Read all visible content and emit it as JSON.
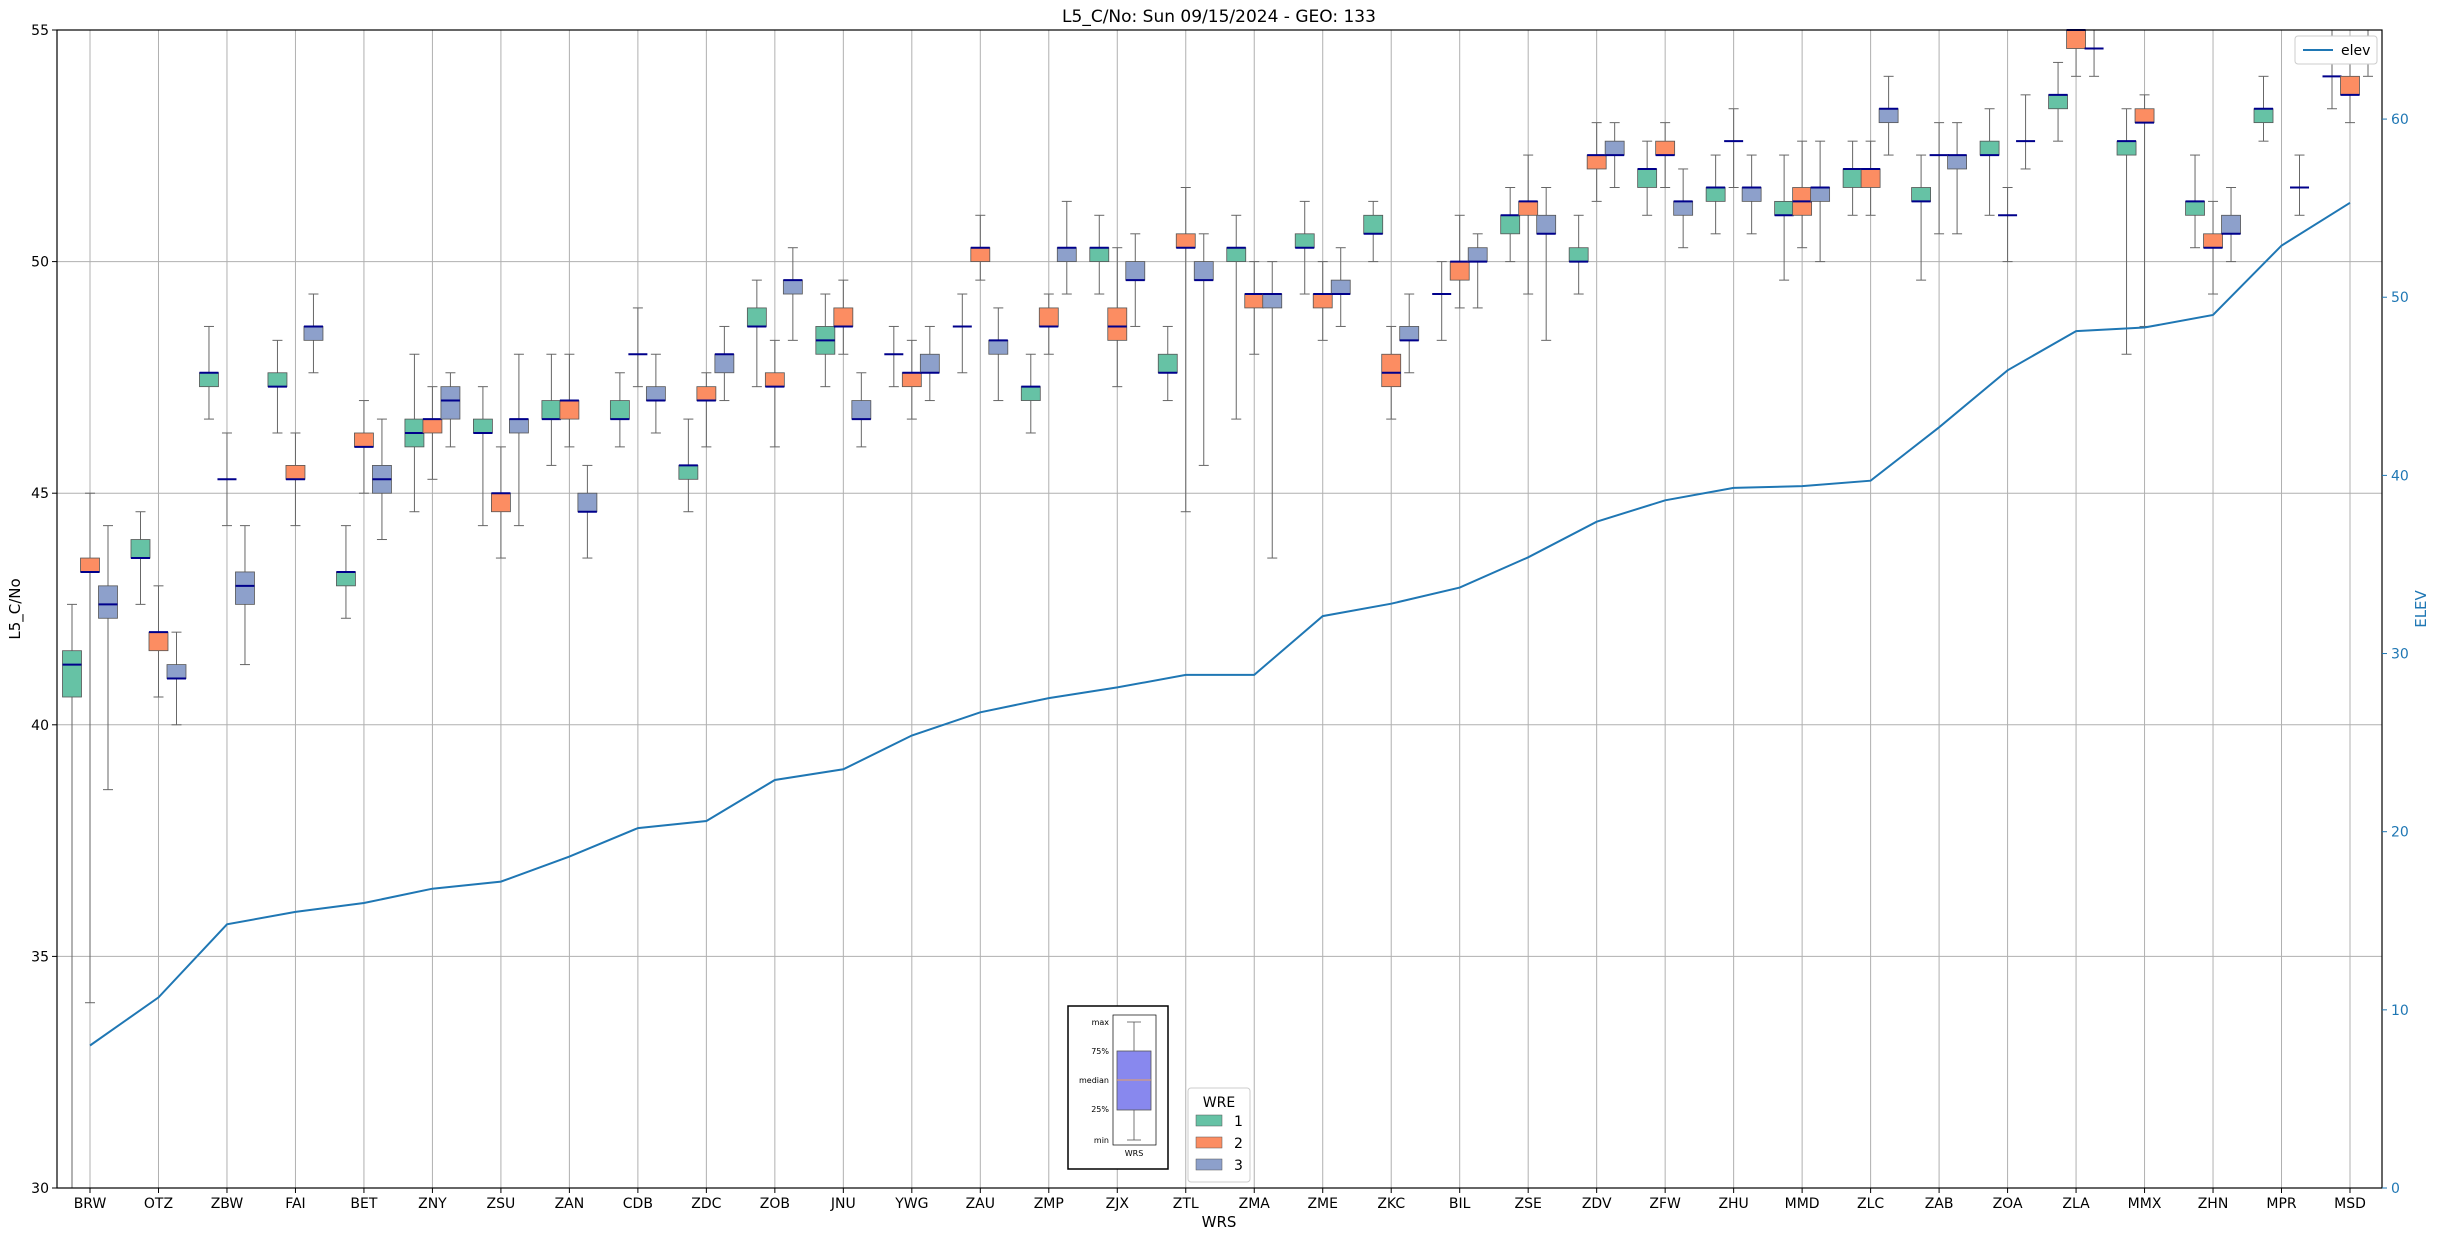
{
  "chart_data": {
    "type": "box",
    "title": "L5_C/No: Sun 09/15/2024 - GEO: 133",
    "xlabel": "WRS",
    "ylabel": "L5_C/No",
    "ylabel_right": "ELEV",
    "ylim": [
      30,
      55
    ],
    "ylim_right": [
      0,
      65
    ],
    "yticks": [
      30,
      35,
      40,
      45,
      50,
      55
    ],
    "yticks_right": [
      0,
      10,
      20,
      30,
      40,
      50,
      60
    ],
    "grid": true,
    "categories": [
      "BRW",
      "OTZ",
      "ZBW",
      "FAI",
      "BET",
      "ZNY",
      "ZSU",
      "ZAN",
      "CDB",
      "ZDC",
      "ZOB",
      "JNU",
      "YWG",
      "ZAU",
      "ZMP",
      "ZJX",
      "ZTL",
      "ZMA",
      "ZME",
      "ZKC",
      "BIL",
      "ZSE",
      "ZDV",
      "ZFW",
      "ZHU",
      "MMD",
      "ZLC",
      "ZAB",
      "ZOA",
      "ZLA",
      "MMX",
      "ZHN",
      "MPR",
      "MSD"
    ],
    "wre_colors": {
      "1": "#66c2a5",
      "2": "#fc8d62",
      "3": "#8da0cb"
    },
    "wre_legend": {
      "title": "WRE",
      "entries": [
        "1",
        "2",
        "3"
      ]
    },
    "elev_legend": "elev",
    "elev_color": "#1f77b4",
    "elev": [
      8,
      10.7,
      14.8,
      15.5,
      16,
      16.8,
      17.2,
      18.6,
      20.2,
      20.6,
      22.9,
      23.5,
      25.4,
      26.7,
      27.5,
      28.1,
      28.8,
      28.8,
      32.1,
      32.8,
      33.7,
      35.4,
      37.4,
      38.6,
      39.3,
      39.4,
      39.7,
      42.7,
      45.9,
      48.1,
      48.3,
      49.0,
      52.9,
      55.3
    ],
    "boxes": [
      {
        "wrs": "BRW",
        "wre": 1,
        "min": 30,
        "q1": 40.6,
        "median": 41.3,
        "q3": 41.6,
        "max": 42.6
      },
      {
        "wrs": "BRW",
        "wre": 2,
        "min": 34,
        "q1": 43.3,
        "median": 43.3,
        "q3": 43.6,
        "max": 45
      },
      {
        "wrs": "BRW",
        "wre": 3,
        "min": 38.6,
        "q1": 42.3,
        "median": 42.6,
        "q3": 43,
        "max": 44.3
      },
      {
        "wrs": "OTZ",
        "wre": 1,
        "min": 42.6,
        "q1": 43.6,
        "median": 43.6,
        "q3": 44,
        "max": 44.6
      },
      {
        "wrs": "OTZ",
        "wre": 2,
        "min": 40.6,
        "q1": 41.6,
        "median": 42,
        "q3": 42,
        "max": 43
      },
      {
        "wrs": "OTZ",
        "wre": 3,
        "min": 40,
        "q1": 41,
        "median": 41,
        "q3": 41.3,
        "max": 42
      },
      {
        "wrs": "ZBW",
        "wre": 1,
        "min": 46.6,
        "q1": 47.3,
        "median": 47.6,
        "q3": 47.6,
        "max": 48.6
      },
      {
        "wrs": "ZBW",
        "wre": 2,
        "min": 44.3,
        "q1": 45.3,
        "median": 45.3,
        "q3": 45.3,
        "max": 46.3
      },
      {
        "wrs": "ZBW",
        "wre": 3,
        "min": 41.3,
        "q1": 42.6,
        "median": 43,
        "q3": 43.3,
        "max": 44.3
      },
      {
        "wrs": "FAI",
        "wre": 1,
        "min": 46.3,
        "q1": 47.3,
        "median": 47.3,
        "q3": 47.6,
        "max": 48.3
      },
      {
        "wrs": "FAI",
        "wre": 2,
        "min": 44.3,
        "q1": 45.3,
        "median": 45.3,
        "q3": 45.6,
        "max": 46.3
      },
      {
        "wrs": "FAI",
        "wre": 3,
        "min": 47.6,
        "q1": 48.3,
        "median": 48.6,
        "q3": 48.6,
        "max": 49.3
      },
      {
        "wrs": "BET",
        "wre": 1,
        "min": 42.3,
        "q1": 43,
        "median": 43.3,
        "q3": 43.3,
        "max": 44.3
      },
      {
        "wrs": "BET",
        "wre": 2,
        "min": 45,
        "q1": 46,
        "median": 46,
        "q3": 46.3,
        "max": 47
      },
      {
        "wrs": "BET",
        "wre": 3,
        "min": 44,
        "q1": 45,
        "median": 45.3,
        "q3": 45.6,
        "max": 46.6
      },
      {
        "wrs": "ZNY",
        "wre": 1,
        "min": 44.6,
        "q1": 46,
        "median": 46.3,
        "q3": 46.6,
        "max": 48
      },
      {
        "wrs": "ZNY",
        "wre": 2,
        "min": 45.3,
        "q1": 46.3,
        "median": 46.6,
        "q3": 46.6,
        "max": 47.3
      },
      {
        "wrs": "ZNY",
        "wre": 3,
        "min": 46,
        "q1": 46.6,
        "median": 47,
        "q3": 47.3,
        "max": 47.6
      },
      {
        "wrs": "ZSU",
        "wre": 1,
        "min": 44.3,
        "q1": 46.3,
        "median": 46.3,
        "q3": 46.6,
        "max": 47.3
      },
      {
        "wrs": "ZSU",
        "wre": 2,
        "min": 43.6,
        "q1": 44.6,
        "median": 45,
        "q3": 45,
        "max": 46
      },
      {
        "wrs": "ZSU",
        "wre": 3,
        "min": 44.3,
        "q1": 46.3,
        "median": 46.6,
        "q3": 46.6,
        "max": 48
      },
      {
        "wrs": "ZAN",
        "wre": 1,
        "min": 45.6,
        "q1": 46.6,
        "median": 46.6,
        "q3": 47,
        "max": 48
      },
      {
        "wrs": "ZAN",
        "wre": 2,
        "min": 46,
        "q1": 46.6,
        "median": 47,
        "q3": 47,
        "max": 48
      },
      {
        "wrs": "ZAN",
        "wre": 3,
        "min": 43.6,
        "q1": 44.6,
        "median": 44.6,
        "q3": 45,
        "max": 45.6
      },
      {
        "wrs": "CDB",
        "wre": 1,
        "min": 46,
        "q1": 46.6,
        "median": 46.6,
        "q3": 47,
        "max": 47.6
      },
      {
        "wrs": "CDB",
        "wre": 2,
        "min": 47.3,
        "q1": 48,
        "median": 48,
        "q3": 48,
        "max": 49
      },
      {
        "wrs": "CDB",
        "wre": 3,
        "min": 46.3,
        "q1": 47,
        "median": 47,
        "q3": 47.3,
        "max": 48
      },
      {
        "wrs": "ZDC",
        "wre": 1,
        "min": 44.6,
        "q1": 45.3,
        "median": 45.6,
        "q3": 45.6,
        "max": 46.6
      },
      {
        "wrs": "ZDC",
        "wre": 2,
        "min": 46,
        "q1": 47,
        "median": 47,
        "q3": 47.3,
        "max": 47.6
      },
      {
        "wrs": "ZDC",
        "wre": 3,
        "min": 47,
        "q1": 47.6,
        "median": 48,
        "q3": 48,
        "max": 48.6
      },
      {
        "wrs": "ZOB",
        "wre": 1,
        "min": 47.3,
        "q1": 48.6,
        "median": 48.6,
        "q3": 49,
        "max": 49.6
      },
      {
        "wrs": "ZOB",
        "wre": 2,
        "min": 46,
        "q1": 47.3,
        "median": 47.3,
        "q3": 47.6,
        "max": 48.3
      },
      {
        "wrs": "ZOB",
        "wre": 3,
        "min": 48.3,
        "q1": 49.3,
        "median": 49.6,
        "q3": 49.6,
        "max": 50.3
      },
      {
        "wrs": "JNU",
        "wre": 1,
        "min": 47.3,
        "q1": 48,
        "median": 48.3,
        "q3": 48.6,
        "max": 49.3
      },
      {
        "wrs": "JNU",
        "wre": 2,
        "min": 48,
        "q1": 48.6,
        "median": 48.6,
        "q3": 49,
        "max": 49.6
      },
      {
        "wrs": "JNU",
        "wre": 3,
        "min": 46,
        "q1": 46.6,
        "median": 46.6,
        "q3": 47,
        "max": 47.6
      },
      {
        "wrs": "YWG",
        "wre": 1,
        "min": 47.3,
        "q1": 48,
        "median": 48,
        "q3": 48,
        "max": 48.6
      },
      {
        "wrs": "YWG",
        "wre": 2,
        "min": 46.6,
        "q1": 47.3,
        "median": 47.6,
        "q3": 47.6,
        "max": 48.3
      },
      {
        "wrs": "YWG",
        "wre": 3,
        "min": 47,
        "q1": 47.6,
        "median": 47.6,
        "q3": 48,
        "max": 48.6
      },
      {
        "wrs": "ZAU",
        "wre": 1,
        "min": 47.6,
        "q1": 48.6,
        "median": 48.6,
        "q3": 48.6,
        "max": 49.3
      },
      {
        "wrs": "ZAU",
        "wre": 2,
        "min": 49.6,
        "q1": 50,
        "median": 50.3,
        "q3": 50.3,
        "max": 51
      },
      {
        "wrs": "ZAU",
        "wre": 3,
        "min": 47,
        "q1": 48,
        "median": 48.3,
        "q3": 48.3,
        "max": 49
      },
      {
        "wrs": "ZMP",
        "wre": 1,
        "min": 46.3,
        "q1": 47,
        "median": 47.3,
        "q3": 47.3,
        "max": 48
      },
      {
        "wrs": "ZMP",
        "wre": 2,
        "min": 48,
        "q1": 48.6,
        "median": 48.6,
        "q3": 49,
        "max": 49.3
      },
      {
        "wrs": "ZMP",
        "wre": 3,
        "min": 49.3,
        "q1": 50,
        "median": 50.3,
        "q3": 50.3,
        "max": 51.3
      },
      {
        "wrs": "ZJX",
        "wre": 1,
        "min": 49.3,
        "q1": 50,
        "median": 50.3,
        "q3": 50.3,
        "max": 51
      },
      {
        "wrs": "ZJX",
        "wre": 2,
        "min": 47.3,
        "q1": 48.3,
        "median": 48.6,
        "q3": 49,
        "max": 50.3
      },
      {
        "wrs": "ZJX",
        "wre": 3,
        "min": 48.6,
        "q1": 49.6,
        "median": 49.6,
        "q3": 50,
        "max": 50.6
      },
      {
        "wrs": "ZTL",
        "wre": 1,
        "min": 47,
        "q1": 47.6,
        "median": 47.6,
        "q3": 48,
        "max": 48.6
      },
      {
        "wrs": "ZTL",
        "wre": 2,
        "min": 44.6,
        "q1": 50.3,
        "median": 50.3,
        "q3": 50.6,
        "max": 51.6
      },
      {
        "wrs": "ZTL",
        "wre": 3,
        "min": 45.6,
        "q1": 49.6,
        "median": 49.6,
        "q3": 50,
        "max": 50.6
      },
      {
        "wrs": "ZMA",
        "wre": 1,
        "min": 46.6,
        "q1": 50,
        "median": 50.3,
        "q3": 50.3,
        "max": 51
      },
      {
        "wrs": "ZMA",
        "wre": 2,
        "min": 48,
        "q1": 49,
        "median": 49.3,
        "q3": 49.3,
        "max": 50
      },
      {
        "wrs": "ZMA",
        "wre": 3,
        "min": 43.6,
        "q1": 49,
        "median": 49.3,
        "q3": 49.3,
        "max": 50
      },
      {
        "wrs": "ZME",
        "wre": 1,
        "min": 49.3,
        "q1": 50.3,
        "median": 50.3,
        "q3": 50.6,
        "max": 51.3
      },
      {
        "wrs": "ZME",
        "wre": 2,
        "min": 48.3,
        "q1": 49,
        "median": 49.3,
        "q3": 49.3,
        "max": 50
      },
      {
        "wrs": "ZME",
        "wre": 3,
        "min": 48.6,
        "q1": 49.3,
        "median": 49.3,
        "q3": 49.6,
        "max": 50.3
      },
      {
        "wrs": "ZKC",
        "wre": 1,
        "min": 50,
        "q1": 50.6,
        "median": 50.6,
        "q3": 51,
        "max": 51.3
      },
      {
        "wrs": "ZKC",
        "wre": 2,
        "min": 46.6,
        "q1": 47.3,
        "median": 47.6,
        "q3": 48,
        "max": 48.6
      },
      {
        "wrs": "ZKC",
        "wre": 3,
        "min": 47.6,
        "q1": 48.3,
        "median": 48.3,
        "q3": 48.6,
        "max": 49.3
      },
      {
        "wrs": "BIL",
        "wre": 1,
        "min": 48.3,
        "q1": 49.3,
        "median": 49.3,
        "q3": 49.3,
        "max": 50
      },
      {
        "wrs": "BIL",
        "wre": 2,
        "min": 49,
        "q1": 49.6,
        "median": 50,
        "q3": 50,
        "max": 51
      },
      {
        "wrs": "BIL",
        "wre": 3,
        "min": 49,
        "q1": 50,
        "median": 50,
        "q3": 50.3,
        "max": 50.6
      },
      {
        "wrs": "ZSE",
        "wre": 1,
        "min": 50,
        "q1": 50.6,
        "median": 51,
        "q3": 51,
        "max": 51.6
      },
      {
        "wrs": "ZSE",
        "wre": 2,
        "min": 49.3,
        "q1": 51,
        "median": 51.3,
        "q3": 51.3,
        "max": 52.3
      },
      {
        "wrs": "ZSE",
        "wre": 3,
        "min": 48.3,
        "q1": 50.6,
        "median": 50.6,
        "q3": 51,
        "max": 51.6
      },
      {
        "wrs": "ZDV",
        "wre": 1,
        "min": 49.3,
        "q1": 50,
        "median": 50,
        "q3": 50.3,
        "max": 51
      },
      {
        "wrs": "ZDV",
        "wre": 2,
        "min": 51.3,
        "q1": 52,
        "median": 52.3,
        "q3": 52.3,
        "max": 53
      },
      {
        "wrs": "ZDV",
        "wre": 3,
        "min": 51.6,
        "q1": 52.3,
        "median": 52.3,
        "q3": 52.6,
        "max": 53
      },
      {
        "wrs": "ZFW",
        "wre": 1,
        "min": 51,
        "q1": 51.6,
        "median": 52,
        "q3": 52,
        "max": 52.6
      },
      {
        "wrs": "ZFW",
        "wre": 2,
        "min": 51.6,
        "q1": 52.3,
        "median": 52.3,
        "q3": 52.6,
        "max": 53
      },
      {
        "wrs": "ZFW",
        "wre": 3,
        "min": 50.3,
        "q1": 51,
        "median": 51.3,
        "q3": 51.3,
        "max": 52
      },
      {
        "wrs": "ZHU",
        "wre": 1,
        "min": 50.6,
        "q1": 51.3,
        "median": 51.6,
        "q3": 51.6,
        "max": 52.3
      },
      {
        "wrs": "ZHU",
        "wre": 2,
        "min": 51.6,
        "q1": 52.6,
        "median": 52.6,
        "q3": 52.6,
        "max": 53.3
      },
      {
        "wrs": "ZHU",
        "wre": 3,
        "min": 50.6,
        "q1": 51.3,
        "median": 51.6,
        "q3": 51.6,
        "max": 52.3
      },
      {
        "wrs": "MMD",
        "wre": 1,
        "min": 49.6,
        "q1": 51,
        "median": 51,
        "q3": 51.3,
        "max": 52.3
      },
      {
        "wrs": "MMD",
        "wre": 2,
        "min": 50.3,
        "q1": 51,
        "median": 51.3,
        "q3": 51.6,
        "max": 52.6
      },
      {
        "wrs": "MMD",
        "wre": 3,
        "min": 50,
        "q1": 51.3,
        "median": 51.6,
        "q3": 51.6,
        "max": 52.6
      },
      {
        "wrs": "ZLC",
        "wre": 1,
        "min": 51,
        "q1": 51.6,
        "median": 52,
        "q3": 52,
        "max": 52.6
      },
      {
        "wrs": "ZLC",
        "wre": 2,
        "min": 51,
        "q1": 51.6,
        "median": 52,
        "q3": 52,
        "max": 52.6
      },
      {
        "wrs": "ZLC",
        "wre": 3,
        "min": 52.3,
        "q1": 53,
        "median": 53.3,
        "q3": 53.3,
        "max": 54
      },
      {
        "wrs": "ZAB",
        "wre": 1,
        "min": 49.6,
        "q1": 51.3,
        "median": 51.3,
        "q3": 51.6,
        "max": 52.3
      },
      {
        "wrs": "ZAB",
        "wre": 2,
        "min": 50.6,
        "q1": 52.3,
        "median": 52.3,
        "q3": 52.3,
        "max": 53
      },
      {
        "wrs": "ZAB",
        "wre": 3,
        "min": 50.6,
        "q1": 52,
        "median": 52.3,
        "q3": 52.3,
        "max": 53
      },
      {
        "wrs": "ZOA",
        "wre": 1,
        "min": 51,
        "q1": 52.3,
        "median": 52.3,
        "q3": 52.6,
        "max": 53.3
      },
      {
        "wrs": "ZOA",
        "wre": 2,
        "min": 50,
        "q1": 51,
        "median": 51,
        "q3": 51,
        "max": 51.6
      },
      {
        "wrs": "ZOA",
        "wre": 3,
        "min": 52,
        "q1": 52.6,
        "median": 52.6,
        "q3": 52.6,
        "max": 53.6
      },
      {
        "wrs": "ZLA",
        "wre": 1,
        "min": 52.6,
        "q1": 53.3,
        "median": 53.6,
        "q3": 53.6,
        "max": 54.3
      },
      {
        "wrs": "ZLA",
        "wre": 2,
        "min": 54,
        "q1": 54.6,
        "median": 55,
        "q3": 55,
        "max": 55
      },
      {
        "wrs": "ZLA",
        "wre": 3,
        "min": 54,
        "q1": 54.6,
        "median": 54.6,
        "q3": 54.6,
        "max": 55
      },
      {
        "wrs": "MMX",
        "wre": 1,
        "min": 48,
        "q1": 52.3,
        "median": 52.6,
        "q3": 52.6,
        "max": 53.3
      },
      {
        "wrs": "MMX",
        "wre": 2,
        "min": 48.6,
        "q1": 53,
        "median": 53,
        "q3": 53.3,
        "max": 53.6
      },
      {
        "wrs": "ZHN",
        "wre": 1,
        "min": 50.3,
        "q1": 51,
        "median": 51.3,
        "q3": 51.3,
        "max": 52.3
      },
      {
        "wrs": "ZHN",
        "wre": 2,
        "min": 49.3,
        "q1": 50.3,
        "median": 50.3,
        "q3": 50.6,
        "max": 51.3
      },
      {
        "wrs": "ZHN",
        "wre": 3,
        "min": 50,
        "q1": 50.6,
        "median": 50.6,
        "q3": 51,
        "max": 51.6
      },
      {
        "wrs": "MPR",
        "wre": 1,
        "min": 52.6,
        "q1": 53,
        "median": 53.3,
        "q3": 53.3,
        "max": 54
      },
      {
        "wrs": "MPR",
        "wre": 3,
        "min": 51,
        "q1": 51.6,
        "median": 51.6,
        "q3": 51.6,
        "max": 52.3
      },
      {
        "wrs": "MSD",
        "wre": 1,
        "min": 53.3,
        "q1": 54,
        "median": 54,
        "q3": 54,
        "max": 55
      },
      {
        "wrs": "MSD",
        "wre": 2,
        "min": 53,
        "q1": 53.6,
        "median": 53.6,
        "q3": 54,
        "max": 54.6
      },
      {
        "wrs": "MSD",
        "wre": 3,
        "min": 54,
        "q1": 54.6,
        "median": 54.6,
        "q3": 54.6,
        "max": 55
      }
    ],
    "inset": {
      "labels": [
        "max",
        "75%",
        "median",
        "25%",
        "min"
      ],
      "xlabel": "WRS"
    }
  }
}
